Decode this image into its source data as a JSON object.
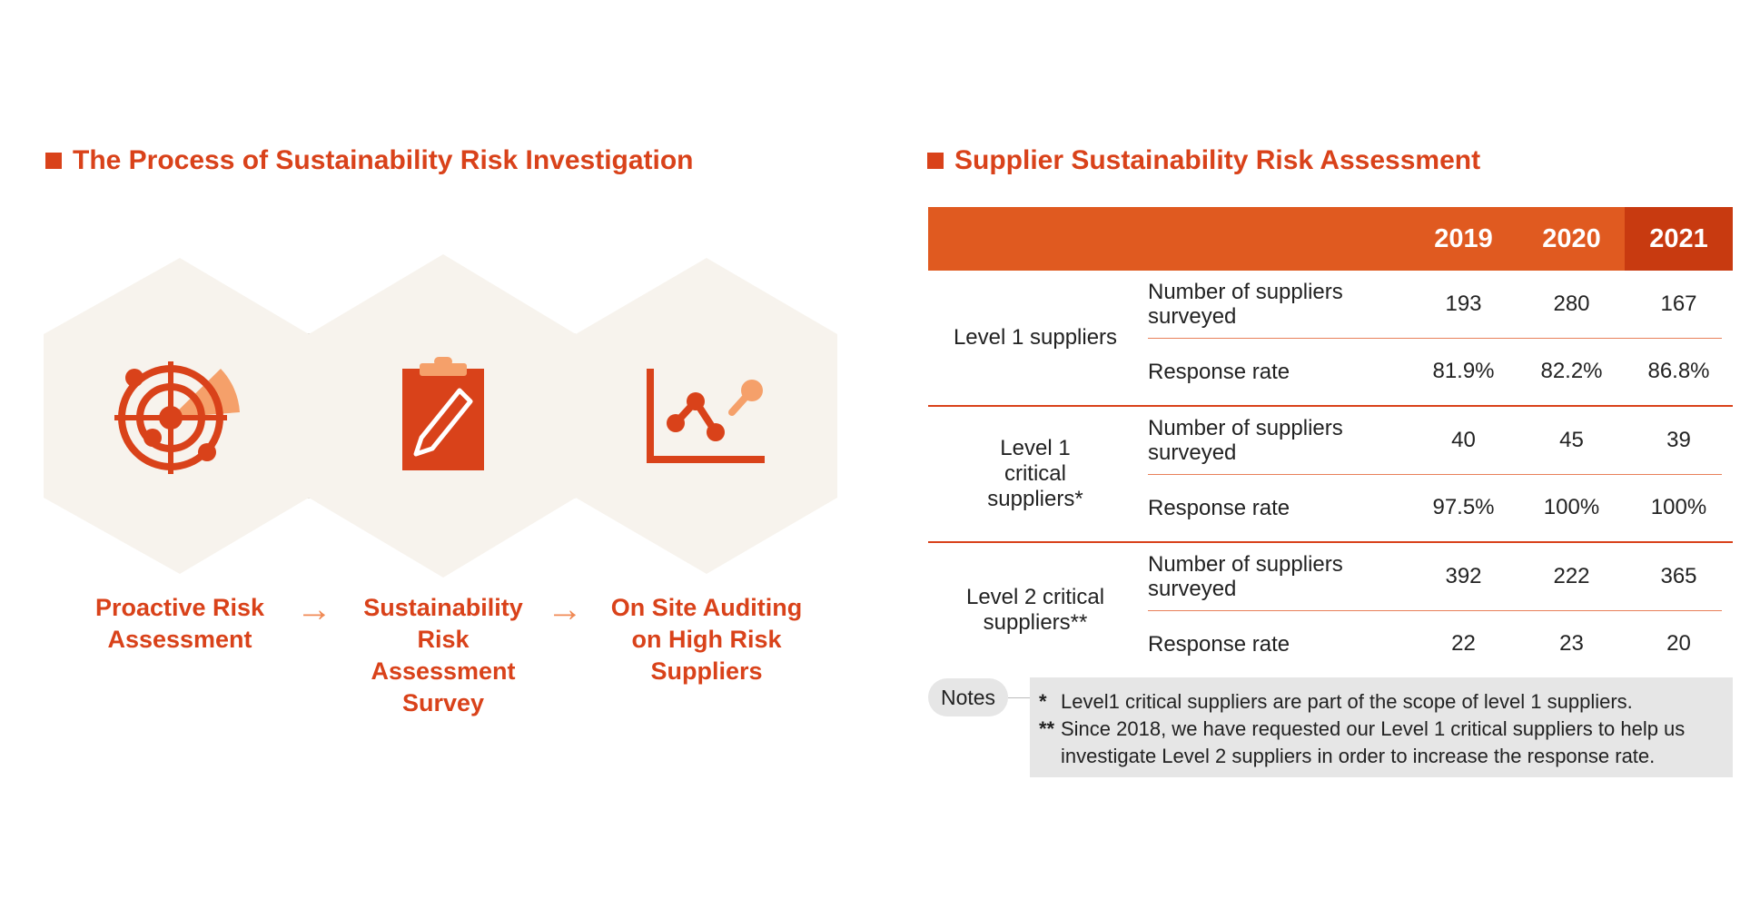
{
  "left": {
    "title": "The Process of Sustainability Risk Investigation",
    "steps": [
      {
        "label_lines": [
          "Proactive Risk",
          "Assessment"
        ],
        "icon": "radar-target-icon"
      },
      {
        "label_lines": [
          "Sustainability",
          "Risk",
          "Assessment",
          "Survey"
        ],
        "icon": "clipboard-pencil-icon"
      },
      {
        "label_lines": [
          "On Site Auditing",
          "on High Risk",
          "Suppliers"
        ],
        "icon": "line-chart-magnify-icon"
      }
    ],
    "arrow": "→"
  },
  "right": {
    "title": "Supplier Sustainability Risk Assessment",
    "years": [
      "2019",
      "2020",
      "2021"
    ],
    "highlight_year": "2021",
    "groups": [
      {
        "label": "Level 1 suppliers",
        "rows": [
          {
            "metric": "Number of suppliers surveyed",
            "values": [
              "193",
              "280",
              "167"
            ]
          },
          {
            "metric": "Response rate",
            "values": [
              "81.9%",
              "82.2%",
              "86.8%"
            ]
          }
        ]
      },
      {
        "label": "Level 1 critical suppliers*",
        "rows": [
          {
            "metric": "Number of suppliers surveyed",
            "values": [
              "40",
              "45",
              "39"
            ]
          },
          {
            "metric": "Response rate",
            "values": [
              "97.5%",
              "100%",
              "100%"
            ]
          }
        ]
      },
      {
        "label": "Level 2 critical suppliers**",
        "rows": [
          {
            "metric": "Number of suppliers surveyed",
            "values": [
              "392",
              "222",
              "365"
            ]
          },
          {
            "metric": "Response rate",
            "values": [
              "22",
              "23",
              "20"
            ]
          }
        ]
      }
    ],
    "notes_label": "Notes",
    "notes": [
      {
        "marker": "*",
        "text": "Level1 critical suppliers are part of the scope of level 1 suppliers."
      },
      {
        "marker": "**",
        "text": "Since 2018, we have requested our Level 1 critical suppliers to help us investigate Level 2 suppliers in order to increase the response rate."
      }
    ]
  },
  "colors": {
    "accent": "#d9421a",
    "header": "#e05a20",
    "header_highlight": "#c83a10",
    "hexagon": "#f7f3ed",
    "arrow": "#f08a55",
    "notes_bg": "#e6e6e6"
  }
}
